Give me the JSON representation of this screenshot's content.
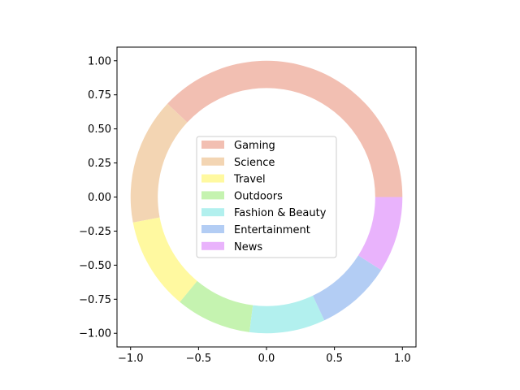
{
  "chart_data": {
    "type": "pie",
    "style": "donut",
    "title": "",
    "xlabel": "",
    "ylabel": "",
    "xlim": [
      -1.1,
      1.1
    ],
    "ylim": [
      -1.1,
      1.1
    ],
    "grid": false,
    "legend_position": "center",
    "outer_radius": 1.0,
    "inner_radius": 0.8,
    "start_angle_deg": 0,
    "direction": "counterclockwise",
    "x_ticks": [
      -1.0,
      -0.5,
      0.0,
      0.5,
      1.0
    ],
    "x_tick_labels": [
      "−1.0",
      "−0.5",
      "0.0",
      "0.5",
      "1.0"
    ],
    "y_ticks": [
      1.0,
      0.75,
      0.5,
      0.25,
      0.0,
      -0.25,
      -0.5,
      -0.75,
      -1.0
    ],
    "y_tick_labels": [
      "1.00",
      "0.75",
      "0.50",
      "0.25",
      "0.00",
      "−0.25",
      "−0.50",
      "−0.75",
      "−1.00"
    ],
    "slices": [
      {
        "label": "Gaming",
        "value": 38,
        "color": "#f2bfb2"
      },
      {
        "label": "Science",
        "value": 15,
        "color": "#f3d5b3"
      },
      {
        "label": "Travel",
        "value": 11,
        "color": "#fff9a0"
      },
      {
        "label": "Outdoors",
        "value": 9,
        "color": "#c5f3b0"
      },
      {
        "label": "Fashion & Beauty",
        "value": 9,
        "color": "#b2f0ee"
      },
      {
        "label": "Entertainment",
        "value": 9,
        "color": "#b3cdf4"
      },
      {
        "label": "News",
        "value": 9,
        "color": "#e9b3fc"
      }
    ]
  }
}
